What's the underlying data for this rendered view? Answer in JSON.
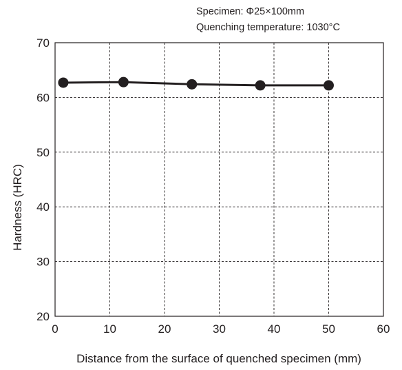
{
  "chart_data": {
    "type": "line",
    "title": "",
    "annotations": [
      "Specimen: Φ25×100mm",
      "Quenching temperature: 1030°C"
    ],
    "xlabel": "Distance from the surface of quenched specimen (mm)",
    "ylabel": "Hardness (HRC)",
    "xlim": [
      0,
      60
    ],
    "ylim": [
      20,
      70
    ],
    "xticks": [
      0,
      10,
      20,
      30,
      40,
      50,
      60
    ],
    "yticks": [
      20,
      30,
      40,
      50,
      60,
      70
    ],
    "grid": true,
    "grid_style": "dashed",
    "series": [
      {
        "x": [
          1.5,
          12.5,
          25,
          37.5,
          50
        ],
        "y": [
          62.7,
          62.8,
          62.4,
          62.2,
          62.2
        ],
        "color": "#231f20",
        "marker": "filled-circle"
      }
    ]
  }
}
